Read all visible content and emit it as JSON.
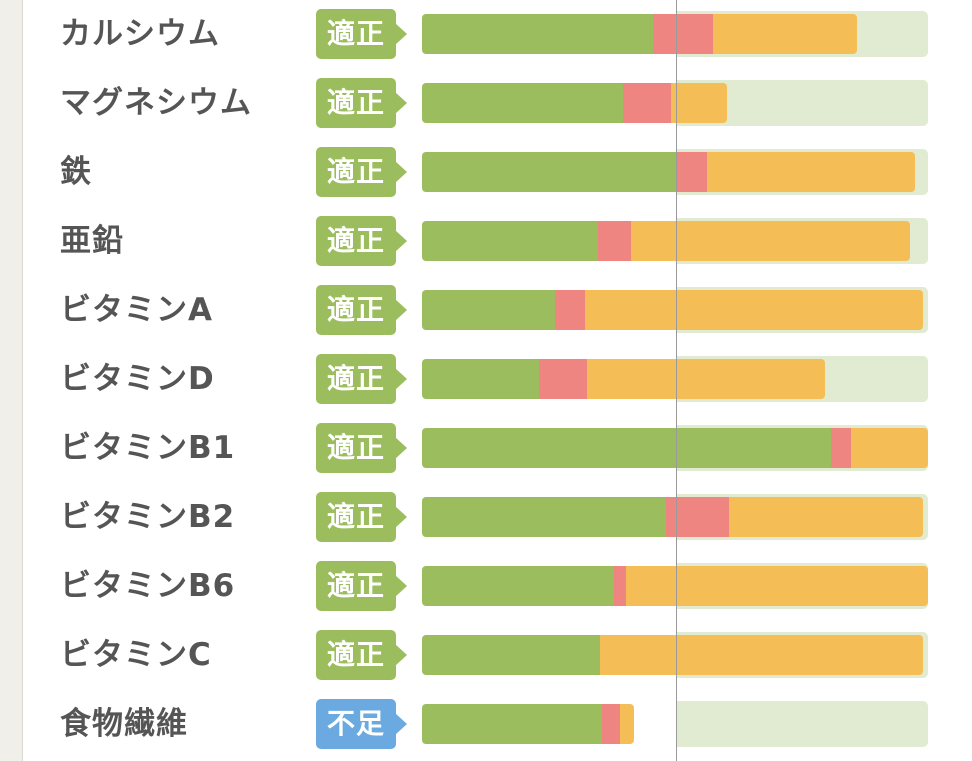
{
  "colors": {
    "green": "#9cbd5d",
    "red": "#ee8580",
    "orange": "#f5bd55",
    "track": "#e0ebd1",
    "badge_ok": "#9cbd5d",
    "badge_low": "#6aaae1"
  },
  "nutrients": [
    {
      "name": "カルシウム",
      "status": "適正",
      "level": "ok",
      "segments": {
        "green": 0.456,
        "red": 0.119,
        "orange": 0.285
      }
    },
    {
      "name": "マグネシウム",
      "status": "適正",
      "level": "ok",
      "segments": {
        "green": 0.397,
        "red": 0.095,
        "orange": 0.111
      }
    },
    {
      "name": "鉄",
      "status": "適正",
      "level": "ok",
      "segments": {
        "green": 0.504,
        "red": 0.059,
        "orange": 0.411
      }
    },
    {
      "name": "亜鉛",
      "status": "適正",
      "level": "ok",
      "segments": {
        "green": 0.348,
        "red": 0.065,
        "orange": 0.551
      }
    },
    {
      "name": "ビタミンA",
      "status": "適正",
      "level": "ok",
      "segments": {
        "green": 0.263,
        "red": 0.059,
        "orange": 0.668
      }
    },
    {
      "name": "ビタミンD",
      "status": "適正",
      "level": "ok",
      "segments": {
        "green": 0.232,
        "red": 0.095,
        "orange": 0.47
      }
    },
    {
      "name": "ビタミンB1",
      "status": "適正",
      "level": "ok",
      "segments": {
        "green": 0.808,
        "red": 0.04,
        "orange": 0.152
      }
    },
    {
      "name": "ビタミンB2",
      "status": "適正",
      "level": "ok",
      "segments": {
        "green": 0.482,
        "red": 0.125,
        "orange": 0.383
      }
    },
    {
      "name": "ビタミンB6",
      "status": "適正",
      "level": "ok",
      "segments": {
        "green": 0.38,
        "red": 0.024,
        "orange": 0.596
      }
    },
    {
      "name": "ビタミンC",
      "status": "適正",
      "level": "ok",
      "segments": {
        "green": 0.352,
        "red": 0.0,
        "orange": 0.638
      }
    },
    {
      "name": "食物繊維",
      "status": "不足",
      "level": "low",
      "segments": {
        "green": 0.356,
        "red": 0.036,
        "orange": 0.028
      }
    }
  ]
}
